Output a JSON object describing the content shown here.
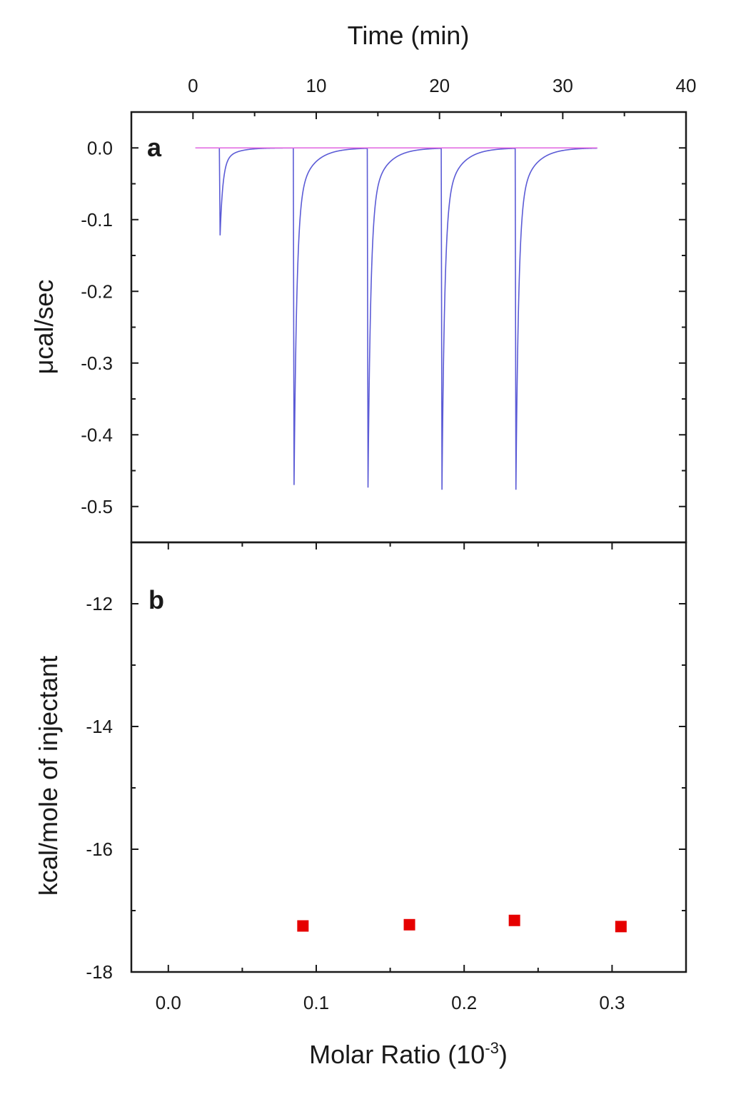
{
  "chart_data": [
    {
      "panel": "a",
      "type": "line",
      "xlabel": "Time (min)",
      "ylabel": "μcal/sec",
      "xlim": [
        -5,
        40
      ],
      "ylim": [
        -0.55,
        0.05
      ],
      "x_ticks": [
        0,
        10,
        20,
        30,
        40
      ],
      "x_tick_labels": [
        "0",
        "10",
        "20",
        "30",
        "40"
      ],
      "y_ticks": [
        0.0,
        -0.1,
        -0.2,
        -0.3,
        -0.4,
        -0.5
      ],
      "y_tick_labels": [
        "0.0",
        "-0.1",
        "-0.2",
        "-0.3",
        "-0.4",
        "-0.5"
      ],
      "x_axis_position": "top",
      "grid": false,
      "series": [
        {
          "kind": "thermogram",
          "color": "#5b5bd6",
          "x_start": 0.2,
          "x_end": 32.8,
          "baseline": 0.0,
          "injections": [
            {
              "time": 2.2,
              "peak": -0.122,
              "decay_min": 1.0
            },
            {
              "time": 8.2,
              "peak": -0.47,
              "decay_min": 1.2
            },
            {
              "time": 14.2,
              "peak": -0.473,
              "decay_min": 1.2
            },
            {
              "time": 20.2,
              "peak": -0.476,
              "decay_min": 1.2
            },
            {
              "time": 26.2,
              "peak": -0.476,
              "decay_min": 1.2
            }
          ]
        },
        {
          "kind": "baseline",
          "color": "#e064e0",
          "x": [
            0.2,
            32.8
          ],
          "y": [
            0.0,
            0.0
          ]
        }
      ]
    },
    {
      "panel": "b",
      "type": "scatter",
      "xlabel": "Molar Ratio (10",
      "xlabel_superscript": "-3",
      "xlabel_suffix": ")",
      "ylabel": "kcal/mole of injectant",
      "xlim": [
        -0.025,
        0.35
      ],
      "ylim": [
        -18,
        -11
      ],
      "x_ticks": [
        0.0,
        0.1,
        0.2,
        0.3
      ],
      "x_tick_labels": [
        "0.0",
        "0.1",
        "0.2",
        "0.3"
      ],
      "y_ticks": [
        -12,
        -14,
        -16,
        -18
      ],
      "y_tick_labels": [
        "-12",
        "-14",
        "-16",
        "-18"
      ],
      "grid": false,
      "series": [
        {
          "marker": "square",
          "color": "#e60000",
          "x": [
            0.091,
            0.163,
            0.234,
            0.306
          ],
          "y": [
            -17.25,
            -17.23,
            -17.16,
            -17.26
          ]
        }
      ]
    }
  ]
}
